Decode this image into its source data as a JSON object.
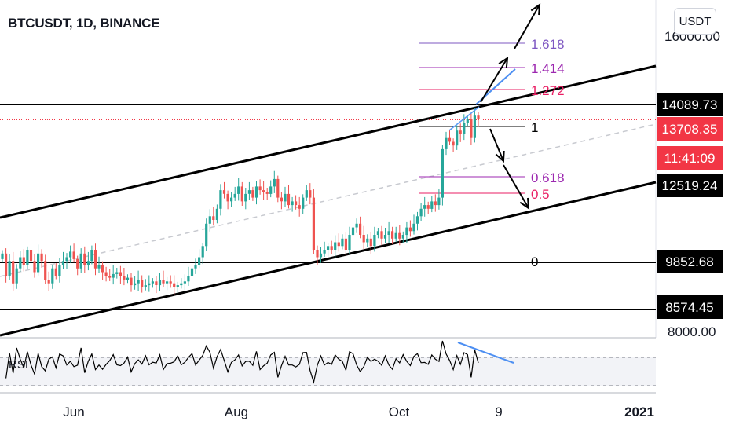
{
  "header": {
    "title": "BTCUSDT, 1D, BINANCE",
    "currency_button": "USDT"
  },
  "colors": {
    "up": "#26a69a",
    "down": "#ef5350",
    "blue": "#2962ff",
    "fib_purple": "#7e57c2",
    "fib_magenta": "#9c27b0",
    "fib_red": "#e91e63",
    "price_red": "#f23645",
    "level_black": "#000000"
  },
  "chart_data": {
    "type": "candlestick",
    "symbol": "BTCUSDT",
    "interval": "1D",
    "exchange": "BINANCE",
    "x_tick_labels": [
      "Jun",
      "Aug",
      "Oct",
      "9",
      "2021"
    ],
    "y_tick_labels": [
      "16000.00",
      "8000.00"
    ],
    "price_labels": {
      "levels": [
        "14089.73",
        "12519.24",
        "9852.68",
        "8574.45"
      ],
      "current_price": "13708.35",
      "countdown": "11:41:09"
    },
    "fibonacci": {
      "levels": [
        {
          "label": "1.618",
          "color": "#7e57c2"
        },
        {
          "label": "1.414",
          "color": "#9c27b0"
        },
        {
          "label": "1.272",
          "color": "#e91e63"
        },
        {
          "label": "1",
          "color": "#000000"
        },
        {
          "label": "0.618",
          "color": "#9c27b0"
        },
        {
          "label": "0.5",
          "color": "#e91e63"
        },
        {
          "label": "0",
          "color": "#000000"
        }
      ]
    },
    "closes": [
      10100,
      9500,
      9900,
      9300,
      9700,
      10000,
      9800,
      10200,
      9900,
      9600,
      10100,
      9900,
      9400,
      9300,
      9700,
      9500,
      9800,
      9900,
      10000,
      10150,
      9950,
      9700,
      10100,
      9800,
      9900,
      10200,
      9700,
      9800,
      9600,
      9500,
      9450,
      9550,
      9600,
      9500,
      9400,
      9450,
      9250,
      9300,
      9400,
      9200,
      9250,
      9300,
      9350,
      9250,
      9400,
      9300,
      9350,
      9300,
      9200,
      9250,
      9300,
      9350,
      9500,
      9700,
      9800,
      10000,
      10300,
      10900,
      11100,
      11000,
      11300,
      11800,
      11700,
      11500,
      11600,
      11700,
      11900,
      11500,
      11700,
      11800,
      11600,
      11900,
      11800,
      11750,
      11700,
      11900,
      12100,
      11600,
      11500,
      11700,
      11400,
      11500,
      11400,
      11300,
      11600,
      11800,
      11600,
      10200,
      10000,
      10100,
      10200,
      10300,
      10200,
      10400,
      10300,
      10500,
      10200,
      10600,
      10800,
      10900,
      10600,
      10400,
      10500,
      10300,
      10600,
      10700,
      10500,
      10600,
      10700,
      10500,
      10650,
      10500,
      10600,
      10800,
      10700,
      10900,
      11100,
      11300,
      11400,
      11300,
      11500,
      11400,
      11600,
      12900,
      13200,
      13100,
      13000,
      13400,
      13300,
      13600,
      13700,
      13200,
      13800,
      13708
    ]
  },
  "indicator": {
    "rsi_label": "RSI"
  }
}
